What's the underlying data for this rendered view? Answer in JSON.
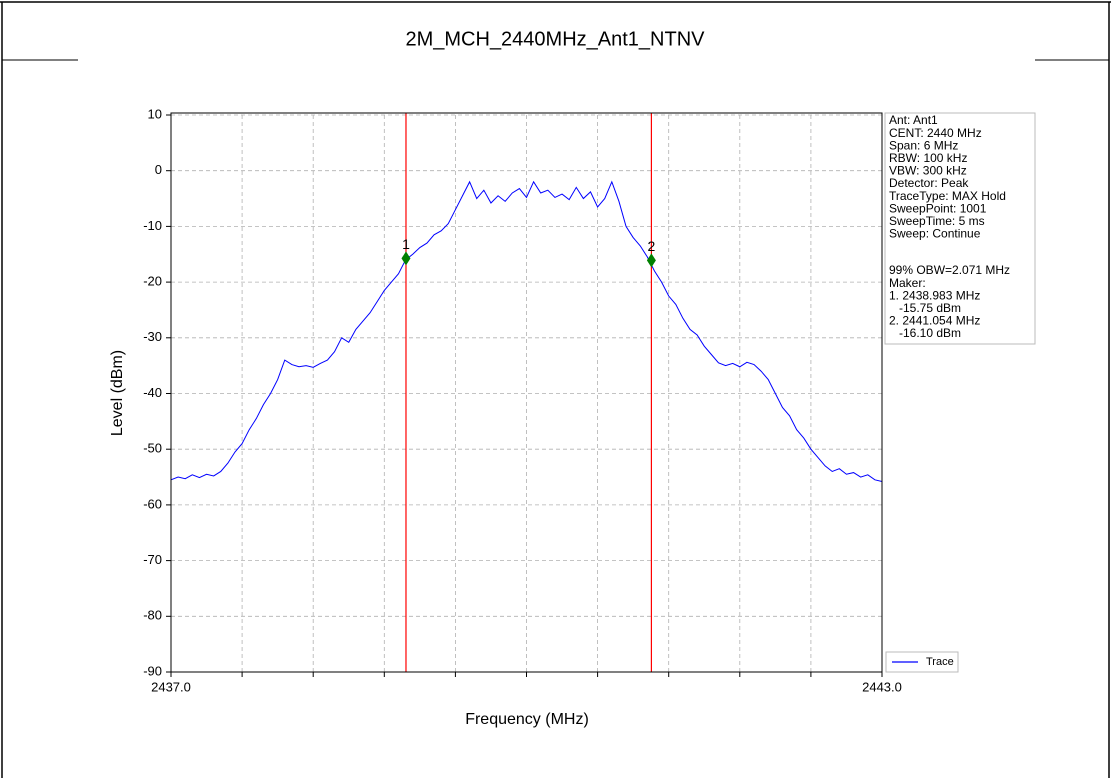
{
  "chart_data": {
    "type": "line",
    "title": "2M_MCH_2440MHz_Ant1_NTNV",
    "xlabel": "Frequency (MHz)",
    "ylabel": "Level (dBm)",
    "xlim": [
      2437,
      2443
    ],
    "ylim": [
      -90,
      10
    ],
    "xticks": [
      {
        "value": 2437,
        "label": "2437.0"
      },
      {
        "value": 2443,
        "label": "2443.0"
      }
    ],
    "xminor": [
      2437.6,
      2438.2,
      2438.8,
      2439.4,
      2440,
      2440.6,
      2441.2,
      2441.8,
      2442.4
    ],
    "yticks": [
      10,
      0,
      -10,
      -20,
      -30,
      -40,
      -50,
      -60,
      -70,
      -80,
      -90
    ],
    "grid": true,
    "series": [
      {
        "name": "Trace",
        "color": "#0000ff",
        "x": [
          2437.0,
          2437.06,
          2437.12,
          2437.18,
          2437.24,
          2437.3,
          2437.36,
          2437.42,
          2437.48,
          2437.54,
          2437.6,
          2437.66,
          2437.72,
          2437.78,
          2437.84,
          2437.9,
          2437.96,
          2438.02,
          2438.08,
          2438.14,
          2438.2,
          2438.26,
          2438.32,
          2438.38,
          2438.44,
          2438.5,
          2438.56,
          2438.62,
          2438.68,
          2438.74,
          2438.8,
          2438.86,
          2438.92,
          2438.98,
          2439.04,
          2439.1,
          2439.16,
          2439.22,
          2439.28,
          2439.34,
          2439.4,
          2439.46,
          2439.52,
          2439.58,
          2439.64,
          2439.7,
          2439.76,
          2439.82,
          2439.88,
          2439.94,
          2440.0,
          2440.06,
          2440.12,
          2440.18,
          2440.24,
          2440.3,
          2440.36,
          2440.42,
          2440.48,
          2440.54,
          2440.6,
          2440.66,
          2440.72,
          2440.78,
          2440.84,
          2440.9,
          2440.96,
          2441.02,
          2441.08,
          2441.14,
          2441.2,
          2441.26,
          2441.32,
          2441.38,
          2441.44,
          2441.5,
          2441.56,
          2441.62,
          2441.68,
          2441.74,
          2441.8,
          2441.86,
          2441.92,
          2441.98,
          2442.04,
          2442.1,
          2442.16,
          2442.22,
          2442.28,
          2442.34,
          2442.4,
          2442.46,
          2442.52,
          2442.58,
          2442.64,
          2442.7,
          2442.76,
          2442.82,
          2442.88,
          2442.94,
          2443.0
        ],
        "values": [
          -55.5,
          -55.0,
          -55.3,
          -54.6,
          -55.1,
          -54.5,
          -54.8,
          -54.0,
          -52.5,
          -50.5,
          -49.0,
          -46.5,
          -44.5,
          -42.0,
          -40.0,
          -37.5,
          -34.0,
          -34.8,
          -35.2,
          -35.0,
          -35.3,
          -34.6,
          -34.0,
          -32.5,
          -30.0,
          -30.8,
          -28.5,
          -27.0,
          -25.5,
          -23.5,
          -21.5,
          -20.0,
          -18.5,
          -16.0,
          -15.0,
          -13.8,
          -13.0,
          -11.5,
          -10.8,
          -9.5,
          -7.0,
          -4.5,
          -2.0,
          -5.0,
          -3.5,
          -5.8,
          -4.5,
          -5.5,
          -4.0,
          -3.2,
          -4.8,
          -2.0,
          -4.0,
          -3.5,
          -4.8,
          -4.2,
          -5.2,
          -3.0,
          -5.0,
          -3.8,
          -6.5,
          -5.0,
          -2.0,
          -5.5,
          -10.0,
          -12.0,
          -13.5,
          -15.5,
          -18.0,
          -20.0,
          -22.5,
          -24.0,
          -26.5,
          -28.5,
          -29.5,
          -31.5,
          -33.0,
          -34.5,
          -35.0,
          -34.6,
          -35.2,
          -34.4,
          -34.8,
          -36.0,
          -37.5,
          -40.0,
          -42.5,
          -44.0,
          -46.5,
          -48.0,
          -50.0,
          -51.5,
          -53.0,
          -54.0,
          -53.5,
          -54.5,
          -54.2,
          -55.0,
          -54.6,
          -55.5,
          -55.8
        ]
      }
    ],
    "markers": [
      {
        "label": "1",
        "x": 2438.983,
        "y": -15.75
      },
      {
        "label": "2",
        "x": 2441.054,
        "y": -16.1
      }
    ],
    "marker_color": "#008000",
    "obw_line_color": "#ff0000",
    "info": [
      "Ant: Ant1",
      "CENT: 2440 MHz",
      "Span: 6 MHz",
      "RBW: 100 kHz",
      "VBW: 300 kHz",
      "Detector: Peak",
      "TraceType: MAX Hold",
      "SweepPoint: 1001",
      "SweepTime: 5 ms",
      "Sweep: Continue",
      "99% OBW=2.071 MHz",
      "Maker:",
      "1. 2438.983 MHz",
      "   -15.75 dBm",
      "2. 2441.054 MHz",
      "   -16.10 dBm"
    ]
  }
}
